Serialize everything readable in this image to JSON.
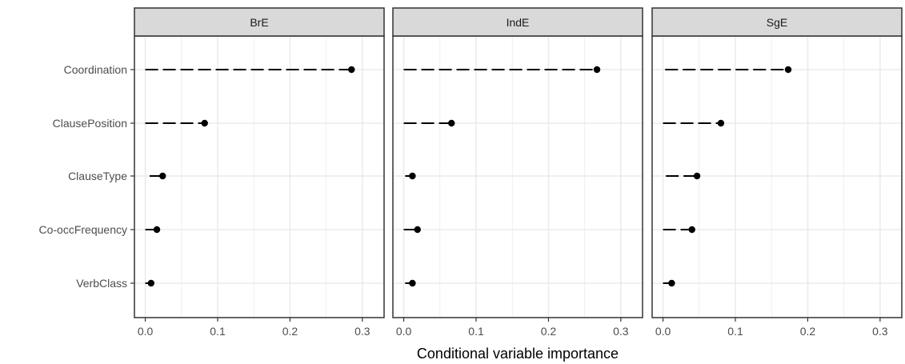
{
  "chart_data": {
    "type": "dot",
    "xlabel": "Conditional variable importance",
    "ylabel": "",
    "xlim": [
      -0.015,
      0.33
    ],
    "x_ticks": [
      "0.0",
      "0.1",
      "0.2",
      "0.3"
    ],
    "x_tick_values": [
      0,
      0.1,
      0.2,
      0.3
    ],
    "x_minor_values": [
      0.05,
      0.15,
      0.25
    ],
    "grid": true,
    "legend": "none",
    "categories": [
      "Coordination",
      "ClausePosition",
      "ClauseType",
      "Co-occFrequency",
      "VerbClass"
    ],
    "panels": [
      {
        "name": "BrE",
        "points": [
          {
            "category": "Coordination",
            "start": 0.0,
            "value": 0.285
          },
          {
            "category": "ClausePosition",
            "start": 0.0,
            "value": 0.082
          },
          {
            "category": "ClauseType",
            "start": 0.006,
            "value": 0.024
          },
          {
            "category": "Co-occFrequency",
            "start": 0.0,
            "value": 0.016
          },
          {
            "category": "VerbClass",
            "start": 0.0,
            "value": 0.008
          }
        ]
      },
      {
        "name": "IndE",
        "points": [
          {
            "category": "Coordination",
            "start": 0.0,
            "value": 0.267
          },
          {
            "category": "ClausePosition",
            "start": 0.0,
            "value": 0.066
          },
          {
            "category": "ClauseType",
            "start": 0.002,
            "value": 0.012
          },
          {
            "category": "Co-occFrequency",
            "start": 0.0,
            "value": 0.019
          },
          {
            "category": "VerbClass",
            "start": 0.002,
            "value": 0.012
          }
        ]
      },
      {
        "name": "SgE",
        "points": [
          {
            "category": "Coordination",
            "start": 0.003,
            "value": 0.173
          },
          {
            "category": "ClausePosition",
            "start": 0.0,
            "value": 0.08
          },
          {
            "category": "ClauseType",
            "start": 0.004,
            "value": 0.047
          },
          {
            "category": "Co-occFrequency",
            "start": 0.0,
            "value": 0.04
          },
          {
            "category": "VerbClass",
            "start": 0.0,
            "value": 0.012
          }
        ]
      }
    ]
  },
  "colors": {
    "strip_fill": "#d9d9d9",
    "panel_border": "#333333",
    "grid": "#ebebeb",
    "mark": "#000000",
    "text": "#4d4d4d"
  }
}
